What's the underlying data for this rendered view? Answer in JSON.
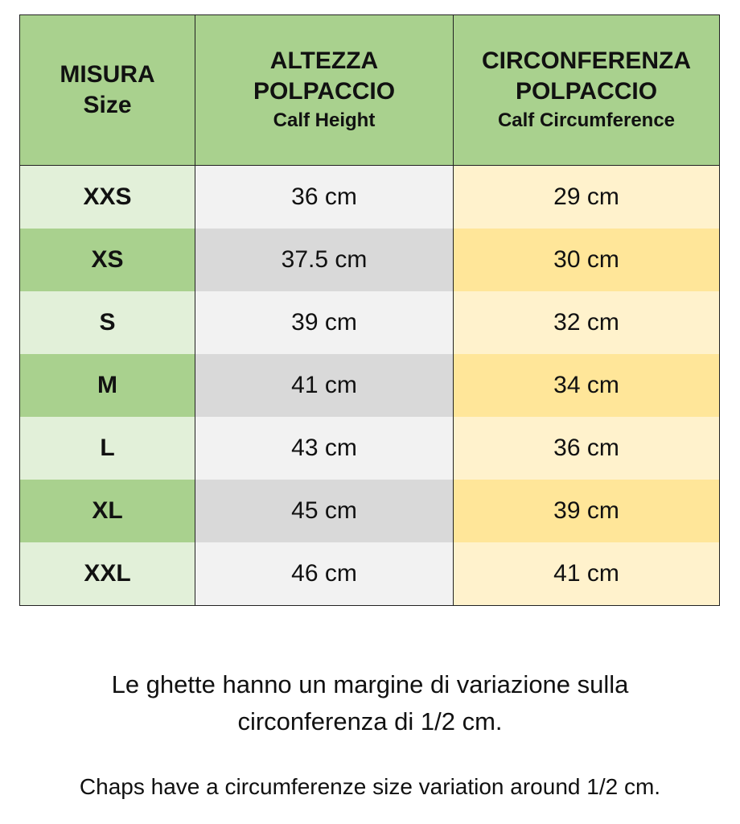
{
  "table": {
    "header": [
      [
        "MISURA",
        "Size"
      ],
      [
        "ALTEZZA",
        "POLPACCIO",
        "Calf Height"
      ],
      [
        "CIRCONFERENZA",
        "POLPACCIO",
        "Calf Circumference"
      ]
    ],
    "rows": [
      [
        "XXS",
        "36 cm",
        "29 cm"
      ],
      [
        "XS",
        "37.5 cm",
        "30 cm"
      ],
      [
        "S",
        "39 cm",
        "32 cm"
      ],
      [
        "M",
        "41 cm",
        "34 cm"
      ],
      [
        "L",
        "43 cm",
        "36 cm"
      ],
      [
        "XL",
        "45 cm",
        "39 cm"
      ],
      [
        "XXL",
        "46 cm",
        "41 cm"
      ]
    ]
  },
  "notes": [
    "Le ghette hanno un margine di variazione sulla circonferenza di 1/2 cm.",
    "Chaps have a circumferenze size variation around 1/2 cm."
  ]
}
